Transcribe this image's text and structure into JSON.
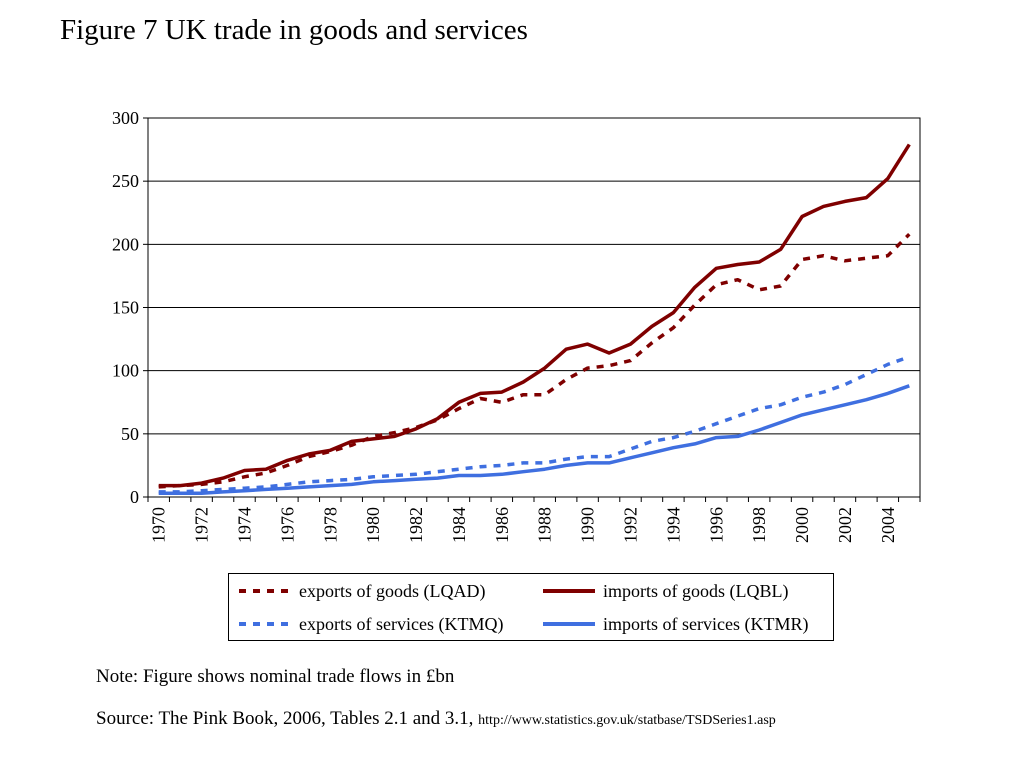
{
  "title": "Figure 7 UK trade in goods and services",
  "note": "Note: Figure shows nominal trade flows in £bn",
  "source_text": "Source: The Pink Book, 2006, Tables 2.1 and 3.1, ",
  "source_url": "http://www.statistics.gov.uk/statbase/TSDSeries1.asp",
  "chart_data": {
    "type": "line",
    "title": "",
    "xlabel": "",
    "ylabel": "",
    "ylim": [
      0,
      300
    ],
    "yticks": [
      0,
      50,
      100,
      150,
      200,
      250,
      300
    ],
    "grid": "horizontal",
    "legend_position": "bottom",
    "x": [
      1970,
      1971,
      1972,
      1973,
      1974,
      1975,
      1976,
      1977,
      1978,
      1979,
      1980,
      1981,
      1982,
      1983,
      1984,
      1985,
      1986,
      1987,
      1988,
      1989,
      1990,
      1991,
      1992,
      1993,
      1994,
      1995,
      1996,
      1997,
      1998,
      1999,
      2000,
      2001,
      2002,
      2003,
      2004,
      2005
    ],
    "xtick_labels": [
      "1970",
      "1972",
      "1974",
      "1976",
      "1978",
      "1980",
      "1982",
      "1984",
      "1986",
      "1988",
      "1990",
      "1992",
      "1994",
      "1996",
      "1998",
      "2000",
      "2002",
      "2004"
    ],
    "series": [
      {
        "name": "exports of goods (LQAD)",
        "color": "#7f0000",
        "style": "dashed",
        "values": [
          8,
          9,
          10,
          12,
          16,
          19,
          25,
          32,
          36,
          41,
          48,
          51,
          55,
          61,
          70,
          78,
          75,
          81,
          81,
          93,
          102,
          104,
          108,
          122,
          134,
          152,
          168,
          172,
          164,
          167,
          188,
          191,
          187,
          189,
          191,
          208
        ]
      },
      {
        "name": "imports of goods (LQBL)",
        "color": "#7f0000",
        "style": "solid",
        "values": [
          9,
          9,
          11,
          15,
          21,
          22,
          29,
          34,
          37,
          44,
          46,
          48,
          54,
          62,
          75,
          82,
          83,
          91,
          102,
          117,
          121,
          114,
          121,
          135,
          146,
          166,
          181,
          184,
          186,
          196,
          222,
          230,
          234,
          237,
          252,
          279
        ]
      },
      {
        "name": "exports of services (KTMQ)",
        "color": "#3f6fe0",
        "style": "dashed",
        "values": [
          4,
          4,
          5,
          6,
          7,
          8,
          10,
          12,
          13,
          14,
          16,
          17,
          18,
          20,
          22,
          24,
          25,
          27,
          27,
          30,
          32,
          32,
          38,
          44,
          47,
          52,
          58,
          64,
          70,
          73,
          79,
          83,
          89,
          97,
          105,
          111
        ]
      },
      {
        "name": "imports of services (KTMR)",
        "color": "#3f6fe0",
        "style": "solid",
        "values": [
          3,
          3,
          3,
          4,
          5,
          6,
          7,
          8,
          9,
          10,
          12,
          13,
          14,
          15,
          17,
          17,
          18,
          20,
          22,
          25,
          27,
          27,
          31,
          35,
          39,
          42,
          47,
          48,
          53,
          59,
          65,
          69,
          73,
          77,
          82,
          88
        ]
      }
    ]
  }
}
